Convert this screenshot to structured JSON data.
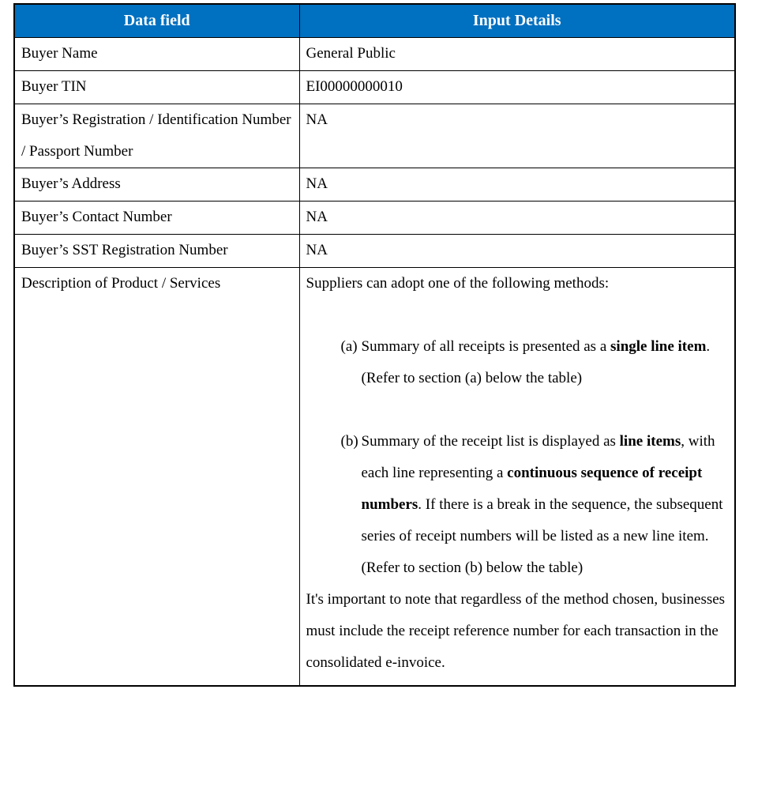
{
  "colors": {
    "header_bg": "#0070C0",
    "header_text": "#FFFFFF",
    "border": "#000000",
    "cell_text": "#000000"
  },
  "table": {
    "header": {
      "col1": "Data field",
      "col2": "Input Details"
    },
    "rows": [
      {
        "field": "Buyer Name",
        "value": "General Public"
      },
      {
        "field": "Buyer TIN",
        "value": "EI00000000010"
      },
      {
        "field": "Buyer’s Registration / Identification Number / Passport Number",
        "value": "NA"
      },
      {
        "field": "Buyer’s Address",
        "value": "NA"
      },
      {
        "field": "Buyer’s Contact Number",
        "value": "NA"
      },
      {
        "field": "Buyer’s SST Registration Number",
        "value": "NA"
      }
    ],
    "description_row": {
      "field": "Description of Product / Services",
      "intro": "Suppliers can adopt one of the following methods:",
      "list": [
        {
          "marker": "(a)",
          "segments": [
            {
              "t": "Summary of all receipts is presented as a "
            },
            {
              "t": "single line item",
              "b": true
            },
            {
              "t": ". (Refer to section (a) below the table)"
            }
          ]
        },
        {
          "marker": "(b)",
          "segments": [
            {
              "t": "Summary of the receipt list is displayed as "
            },
            {
              "t": "line items",
              "b": true
            },
            {
              "t": ", with each line representing a "
            },
            {
              "t": "continuous sequence of receipt numbers",
              "b": true
            },
            {
              "t": ". If there is a break in the sequence, the subsequent series of receipt numbers will be listed as a new line item. (Refer to section (b) below the table)"
            }
          ]
        }
      ],
      "footer": "It's important to note that regardless of the method chosen, businesses must include the receipt reference number for each transaction in the consolidated e-invoice."
    }
  }
}
